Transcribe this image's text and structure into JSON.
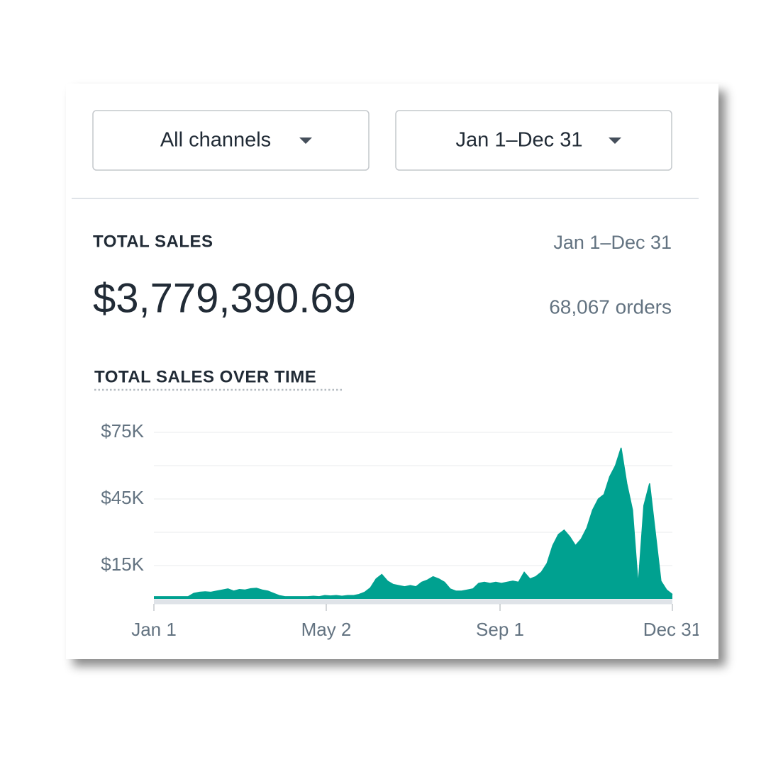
{
  "filters": {
    "channel": "All channels",
    "date_range": "Jan 1–Dec 31"
  },
  "summary": {
    "title": "TOTAL SALES",
    "date_range": "Jan 1–Dec 31",
    "amount": "$3,779,390.69",
    "orders": "68,067 orders"
  },
  "chart_data": {
    "type": "area",
    "title": "TOTAL SALES OVER TIME",
    "color": "#00a190",
    "x": [
      0,
      4,
      8,
      12,
      16,
      20,
      24,
      28,
      32,
      36,
      40,
      44,
      48,
      52,
      56,
      60,
      64,
      68,
      72,
      76,
      80,
      84,
      88,
      92,
      96,
      100,
      104,
      108,
      112,
      116,
      120,
      124,
      128,
      132,
      136,
      140,
      144,
      148,
      152,
      156,
      160,
      164,
      168,
      172,
      176,
      180,
      184,
      188,
      192,
      196,
      200,
      204,
      208,
      212,
      216,
      220,
      224,
      228,
      232,
      236,
      240,
      244,
      248,
      252,
      256,
      260,
      264,
      268,
      272,
      276,
      280,
      284,
      288,
      292,
      296,
      300,
      304,
      308,
      312,
      316,
      320,
      324,
      328,
      332,
      336,
      340,
      344,
      348,
      352,
      356,
      360,
      364
    ],
    "values": [
      1000,
      1000,
      1000,
      1000,
      1000,
      1000,
      1000,
      2500,
      3000,
      3200,
      3000,
      3500,
      4000,
      4500,
      3500,
      4200,
      4000,
      4600,
      4800,
      4000,
      3500,
      2500,
      1500,
      1000,
      1000,
      1000,
      1000,
      1000,
      1200,
      1000,
      1500,
      1300,
      1500,
      1200,
      1500,
      1500,
      2000,
      3000,
      5000,
      9000,
      11000,
      8000,
      6500,
      6000,
      5500,
      6000,
      5500,
      7500,
      8500,
      10000,
      9000,
      7500,
      4500,
      3500,
      3500,
      4000,
      4500,
      7000,
      7500,
      7000,
      7500,
      7000,
      7500,
      8000,
      7500,
      12000,
      9000,
      10000,
      12000,
      16000,
      24000,
      29000,
      31000,
      28000,
      24000,
      27000,
      32000,
      40000,
      45000,
      47000,
      55000,
      60000,
      68000,
      52000,
      40000,
      6000,
      42000,
      52000,
      30000,
      8000,
      4000,
      2000
    ],
    "xlim": [
      0,
      364
    ],
    "xticks": [
      {
        "value": 0,
        "label": "Jan 1"
      },
      {
        "value": 121,
        "label": "May 2"
      },
      {
        "value": 243,
        "label": "Sep 1"
      },
      {
        "value": 364,
        "label": "Dec 31"
      }
    ],
    "ylim": [
      0,
      75000
    ],
    "yticks": [
      {
        "value": 15000,
        "label": "$15K"
      },
      {
        "value": 45000,
        "label": "$45K"
      },
      {
        "value": 75000,
        "label": "$75K"
      }
    ],
    "ygrid": [
      0,
      15000,
      30000,
      45000,
      60000,
      75000
    ],
    "grid": true
  }
}
